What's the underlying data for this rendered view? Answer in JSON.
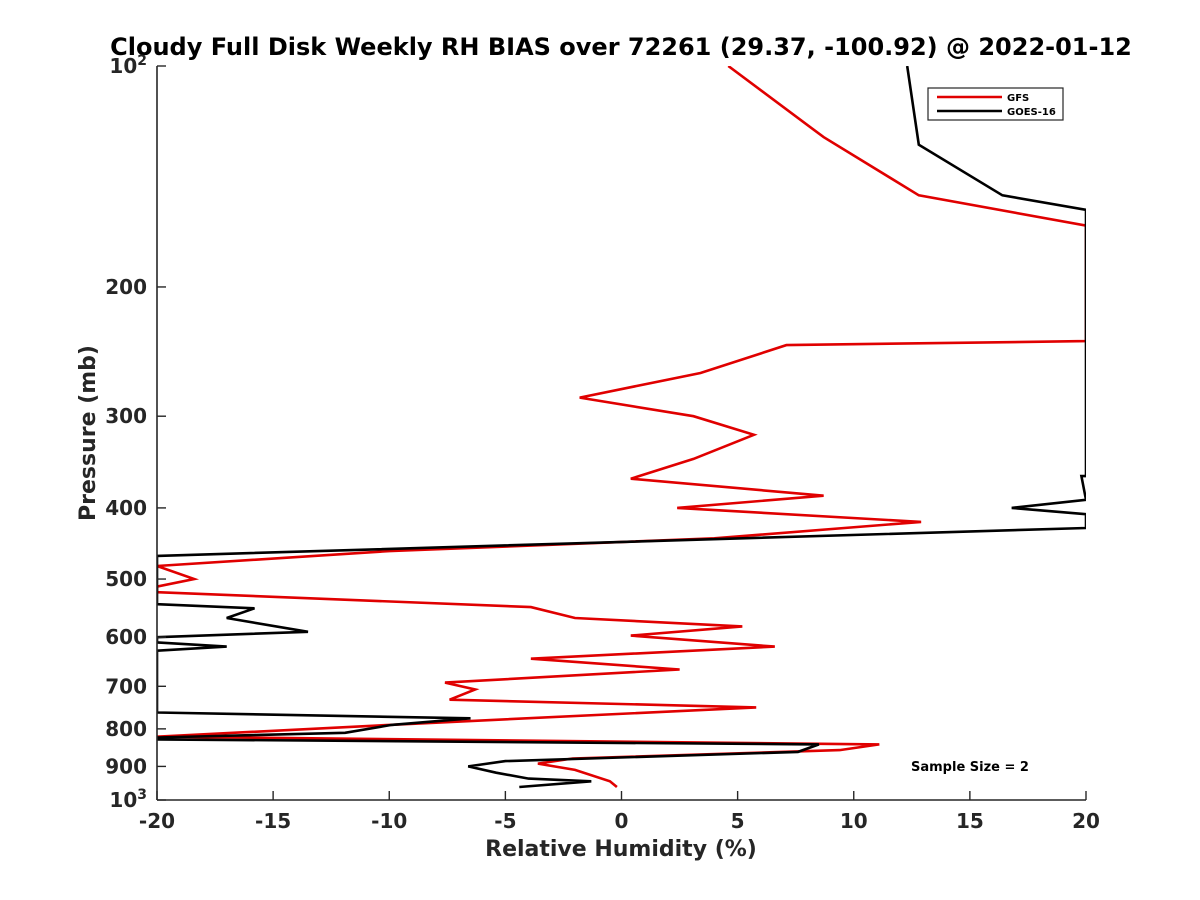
{
  "chart_data": {
    "type": "line",
    "title": "Cloudy Full Disk Weekly RH BIAS over 72261 (29.37, -100.92) @ 2022-01-12",
    "xlabel": "Relative Humidity (%)",
    "ylabel": "Pressure (mb)",
    "xlim": [
      -20,
      20
    ],
    "ylim": [
      100,
      1000
    ],
    "y_scale": "log",
    "y_reversed": true,
    "grid": false,
    "legend_position": "top-right",
    "annotation": "Sample Size = 2",
    "x_ticks": [
      -20,
      -15,
      -10,
      -5,
      0,
      5,
      10,
      15,
      20
    ],
    "x_tick_labels": [
      "-20",
      "-15",
      "-10",
      "-5",
      "0",
      "5",
      "10",
      "15",
      "20"
    ],
    "y_ticks": [
      {
        "value": 100,
        "label": "10",
        "sup": "2"
      },
      {
        "value": 200,
        "label": "200",
        "sup": ""
      },
      {
        "value": 300,
        "label": "300",
        "sup": ""
      },
      {
        "value": 400,
        "label": "400",
        "sup": ""
      },
      {
        "value": 500,
        "label": "500",
        "sup": ""
      },
      {
        "value": 600,
        "label": "600",
        "sup": ""
      },
      {
        "value": 700,
        "label": "700",
        "sup": ""
      },
      {
        "value": 800,
        "label": "800",
        "sup": ""
      },
      {
        "value": 900,
        "label": "900",
        "sup": ""
      },
      {
        "value": 1000,
        "label": "10",
        "sup": "3"
      }
    ],
    "series": [
      {
        "name": "GFS",
        "color": "#e00000",
        "points": [
          [
            4.6,
            100
          ],
          [
            8.7,
            125
          ],
          [
            12.8,
            150
          ],
          [
            20,
            165
          ],
          [
            20,
            237
          ],
          [
            7.1,
            240
          ],
          [
            3.4,
            262
          ],
          [
            -1.8,
            283
          ],
          [
            3.1,
            300
          ],
          [
            5.7,
            318
          ],
          [
            3.1,
            343
          ],
          [
            0.4,
            365
          ],
          [
            8.7,
            385
          ],
          [
            2.4,
            400
          ],
          [
            12.9,
            418
          ],
          [
            4.0,
            440
          ],
          [
            -10,
            458
          ],
          [
            -20,
            480
          ],
          [
            -18.4,
            500
          ],
          [
            -20,
            512
          ],
          [
            -20,
            521
          ],
          [
            -3.9,
            546
          ],
          [
            -2.0,
            565
          ],
          [
            5.2,
            580
          ],
          [
            0.4,
            597
          ],
          [
            6.6,
            618
          ],
          [
            -3.9,
            642
          ],
          [
            2.5,
            664
          ],
          [
            -7.6,
            692
          ],
          [
            -6.3,
            707
          ],
          [
            -7.4,
            730
          ],
          [
            5.8,
            748
          ],
          [
            -10,
            790
          ],
          [
            -20,
            820
          ],
          [
            11.1,
            840
          ],
          [
            9.4,
            855
          ],
          [
            -2.1,
            878
          ],
          [
            -3.6,
            892
          ],
          [
            -2.0,
            910
          ],
          [
            -0.5,
            943
          ],
          [
            -0.2,
            960
          ]
        ]
      },
      {
        "name": "GOES-16",
        "color": "#000000",
        "points": [
          [
            12.3,
            100
          ],
          [
            12.8,
            128
          ],
          [
            16.4,
            150
          ],
          [
            20,
            157
          ],
          [
            20,
            362
          ],
          [
            19.8,
            362
          ],
          [
            20,
            390
          ],
          [
            16.8,
            400
          ],
          [
            20,
            408
          ],
          [
            20,
            426
          ],
          [
            -20,
            465
          ],
          [
            -20,
            541
          ],
          [
            -15.8,
            548
          ],
          [
            -17,
            565
          ],
          [
            -13.5,
            590
          ],
          [
            -20,
            600
          ],
          [
            -20,
            610
          ],
          [
            -17,
            618
          ],
          [
            -20,
            626
          ],
          [
            -20,
            760
          ],
          [
            -6.5,
            774
          ],
          [
            -9.9,
            790
          ],
          [
            -11.9,
            810
          ],
          [
            -20,
            822
          ],
          [
            -20,
            827
          ],
          [
            8.5,
            840
          ],
          [
            7.6,
            860
          ],
          [
            -5.0,
            885
          ],
          [
            -6.6,
            900
          ],
          [
            -5.4,
            918
          ],
          [
            -4.0,
            935
          ],
          [
            -1.3,
            943
          ],
          [
            -4.4,
            960
          ]
        ]
      }
    ]
  }
}
